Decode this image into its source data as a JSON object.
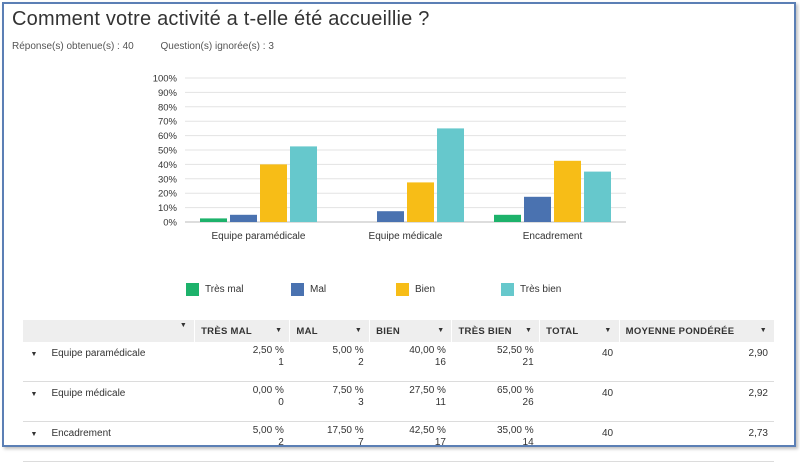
{
  "question": {
    "title": "Comment votre activité a t-elle été accueillie ?",
    "answered": "Réponse(s) obtenue(s) : 40",
    "skipped": "Question(s) ignorée(s) : 3"
  },
  "chart_data": {
    "type": "bar",
    "categories": [
      "Equipe paramédicale",
      "Equipe médicale",
      "Encadrement"
    ],
    "series": [
      {
        "name": "Très mal",
        "color": "#1db26b",
        "values": [
          2.5,
          0,
          5
        ]
      },
      {
        "name": "Mal",
        "color": "#4a72b0",
        "values": [
          5,
          7.5,
          17.5
        ]
      },
      {
        "name": "Bien",
        "color": "#f7bd17",
        "values": [
          40,
          27.5,
          42.5
        ]
      },
      {
        "name": "Très bien",
        "color": "#66c8cc",
        "values": [
          52.5,
          65,
          35
        ]
      }
    ],
    "ylim": [
      0,
      100
    ],
    "yticks": [
      "0%",
      "10%",
      "20%",
      "30%",
      "40%",
      "50%",
      "60%",
      "70%",
      "80%",
      "90%",
      "100%"
    ],
    "grid": true,
    "legend": "bottom"
  },
  "table": {
    "headers": [
      "TRÈS MAL",
      "MAL",
      "BIEN",
      "TRÈS BIEN",
      "TOTAL",
      "MOYENNE PONDÉRÉE"
    ],
    "rows": [
      {
        "label": "Equipe paramédicale",
        "cells": [
          {
            "pct": "2,50 %",
            "count": "1"
          },
          {
            "pct": "5,00 %",
            "count": "2"
          },
          {
            "pct": "40,00 %",
            "count": "16"
          },
          {
            "pct": "52,50 %",
            "count": "21"
          }
        ],
        "total": "40",
        "avg": "2,90"
      },
      {
        "label": "Equipe médicale",
        "cells": [
          {
            "pct": "0,00 %",
            "count": "0"
          },
          {
            "pct": "7,50 %",
            "count": "3"
          },
          {
            "pct": "27,50 %",
            "count": "11"
          },
          {
            "pct": "65,00 %",
            "count": "26"
          }
        ],
        "total": "40",
        "avg": "2,92"
      },
      {
        "label": "Encadrement",
        "cells": [
          {
            "pct": "5,00 %",
            "count": "2"
          },
          {
            "pct": "17,50 %",
            "count": "7"
          },
          {
            "pct": "42,50 %",
            "count": "17"
          },
          {
            "pct": "35,00 %",
            "count": "14"
          }
        ],
        "total": "40",
        "avg": "2,73"
      }
    ]
  },
  "icons": {
    "sort_caret": "▼"
  }
}
